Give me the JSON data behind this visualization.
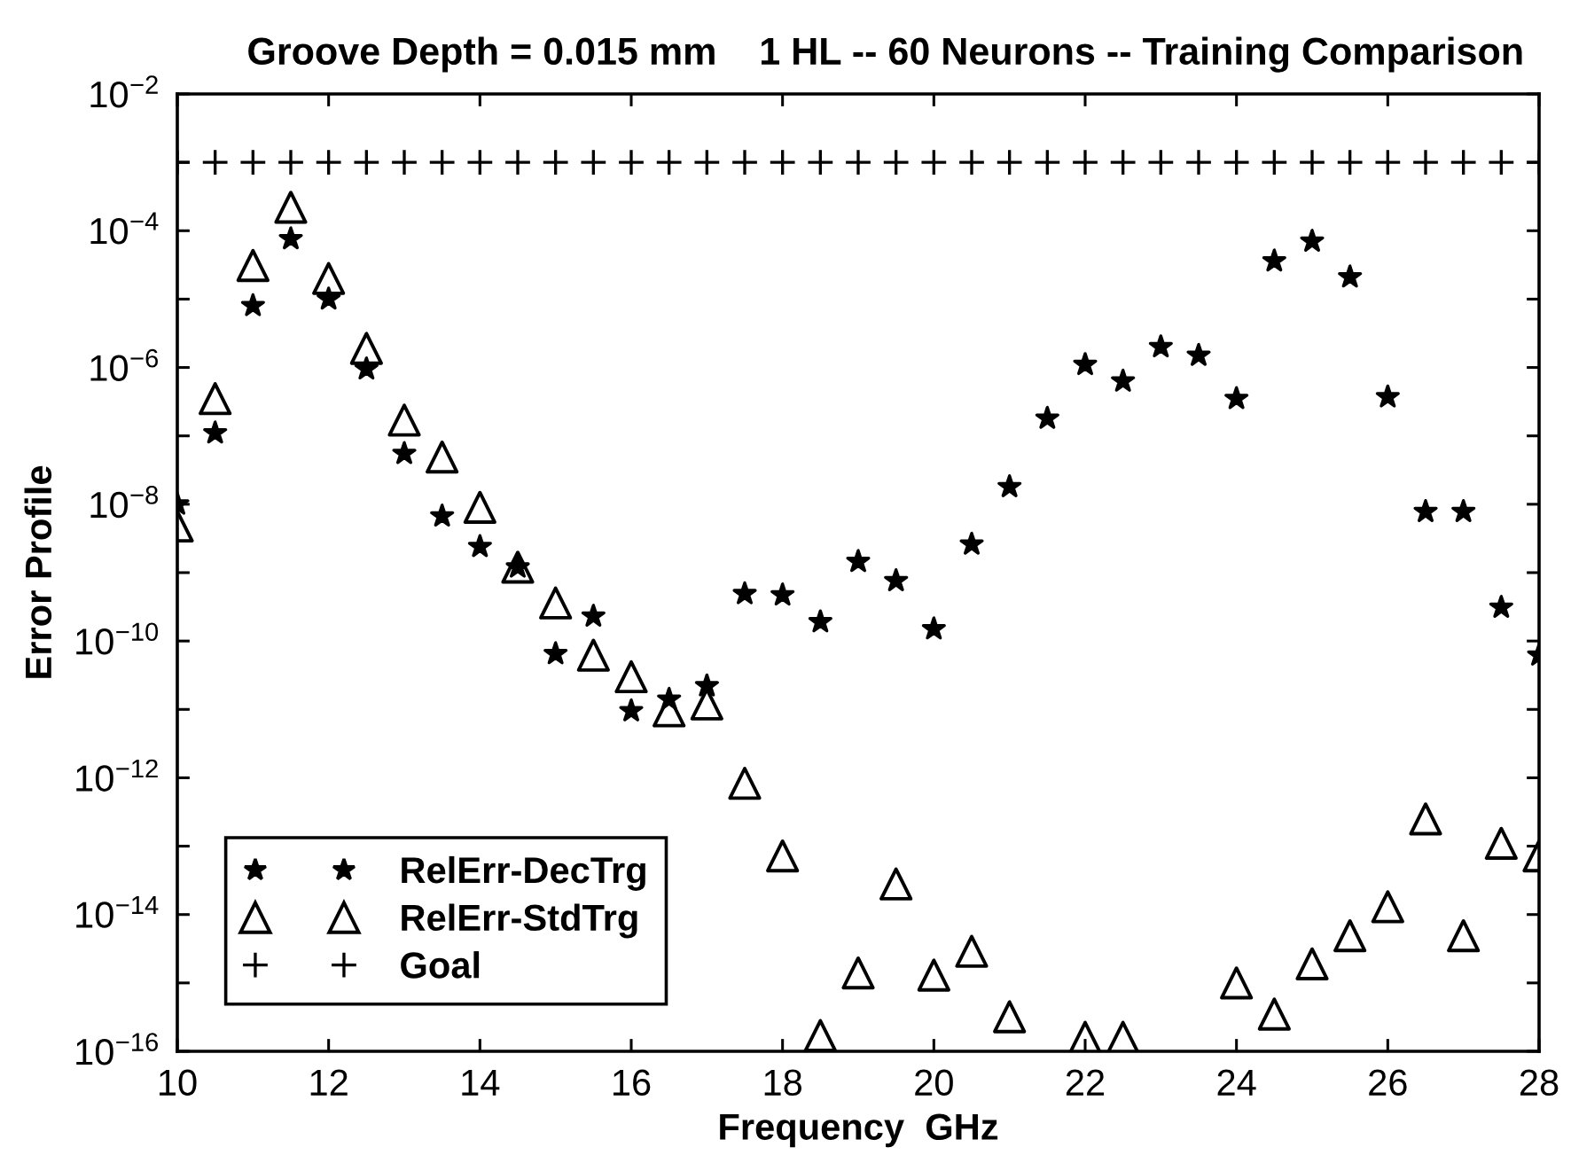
{
  "chart_data": {
    "type": "scatter",
    "title": "Groove Depth = 0.015 mm    1 HL -- 60 Neurons -- Training Comparison",
    "xlabel": "Frequency  GHz",
    "ylabel": "Error Profile",
    "x": [
      10,
      10.5,
      11,
      11.5,
      12,
      12.5,
      13,
      13.5,
      14,
      14.5,
      15,
      15.5,
      16,
      16.5,
      17,
      17.5,
      18,
      18.5,
      19,
      19.5,
      20,
      20.5,
      21,
      21.5,
      22,
      22.5,
      23,
      23.5,
      24,
      24.5,
      25,
      25.5,
      26,
      26.5,
      27,
      27.5,
      28
    ],
    "series": [
      {
        "name": "RelErr-DecTrg",
        "color": "#000000",
        "marker": "star",
        "values": [
          1e-08,
          1.1e-07,
          8e-06,
          7.6e-05,
          1e-05,
          9.5e-07,
          5.5e-08,
          6.7e-09,
          2.4e-09,
          1.2e-09,
          6.5e-11,
          2.3e-10,
          9.5e-12,
          1.4e-11,
          2.2e-11,
          4.9e-10,
          4.7e-10,
          1.9e-10,
          1.45e-09,
          7.6e-10,
          1.5e-10,
          2.6e-09,
          1.8e-08,
          1.8e-07,
          1.1e-06,
          6.3e-07,
          2e-06,
          1.5e-06,
          3.5e-07,
          3.6e-05,
          7e-05,
          2.1e-05,
          3.7e-07,
          7.8e-09,
          7.8e-09,
          3.1e-10,
          6.2e-11
        ]
      },
      {
        "name": "RelErr-StdTrg",
        "color": "#000000",
        "marker": "triangle",
        "values": [
          4.8e-09,
          3.5e-07,
          3.1e-05,
          0.00022,
          2e-05,
          1.9e-06,
          1.7e-07,
          4.9e-08,
          9e-09,
          1.2e-09,
          3.6e-10,
          6.2e-11,
          3e-11,
          9.5e-12,
          1.2e-11,
          8.3e-13,
          7.2e-14,
          1.7e-16,
          1.4e-15,
          2.8e-14,
          1.3e-15,
          2.9e-15,
          3.2e-16,
          null,
          1.6e-16,
          1.6e-16,
          null,
          null,
          1e-15,
          3.5e-16,
          1.9e-15,
          4.9e-15,
          1.3e-14,
          2.5e-13,
          4.9e-15,
          1.1e-13,
          7.2e-14
        ]
      },
      {
        "name": "Goal",
        "color": "#000000",
        "marker": "cross",
        "values": [
          0.001,
          0.001,
          0.001,
          0.001,
          0.001,
          0.001,
          0.001,
          0.001,
          0.001,
          0.001,
          0.001,
          0.001,
          0.001,
          0.001,
          0.001,
          0.001,
          0.001,
          0.001,
          0.001,
          0.001,
          0.001,
          0.001,
          0.001,
          0.001,
          0.001,
          0.001,
          0.001,
          0.001,
          0.001,
          0.001,
          0.001,
          0.001,
          0.001,
          0.001,
          0.001,
          0.001,
          0.001
        ]
      }
    ],
    "xlim": [
      10,
      28
    ],
    "xticks": [
      10,
      12,
      14,
      16,
      18,
      20,
      22,
      24,
      26,
      28
    ],
    "ylim": [
      1e-16,
      0.01
    ],
    "yticks": [
      {
        "value": 1e-16,
        "label": "10$^{−16}$"
      },
      {
        "value": 1e-15,
        "label": null
      },
      {
        "value": 1e-14,
        "label": "10$^{−14}$"
      },
      {
        "value": 1e-13,
        "label": null
      },
      {
        "value": 1e-12,
        "label": "10$^{−12}$"
      },
      {
        "value": 1e-11,
        "label": null
      },
      {
        "value": 1e-10,
        "label": "10$^{−10}$"
      },
      {
        "value": 1e-09,
        "label": null
      },
      {
        "value": 1e-08,
        "label": "10$^{−8}$"
      },
      {
        "value": 1e-07,
        "label": null
      },
      {
        "value": 1e-06,
        "label": "10$^{−6}$"
      },
      {
        "value": 1e-05,
        "label": null
      },
      {
        "value": 0.0001,
        "label": "10$^{−4}$"
      },
      {
        "value": 0.001,
        "label": null
      },
      {
        "value": 0.01,
        "label": "10$^{−2}$"
      }
    ],
    "log": true,
    "legend": "bottom left"
  }
}
